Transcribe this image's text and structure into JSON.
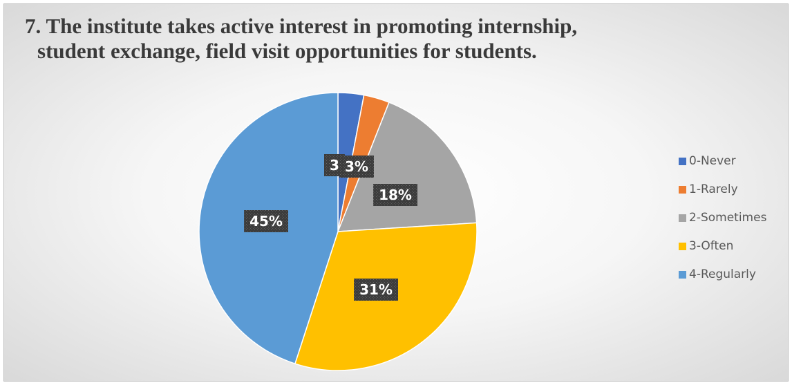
{
  "chart_data": {
    "type": "pie",
    "title_line1": "7. The institute takes active interest in promoting internship,",
    "title_line2": "student exchange, field visit opportunities for students.",
    "start_angle_deg": 0,
    "direction": "clockwise",
    "legend_position": "right",
    "slices": [
      {
        "name": "0-Never",
        "value": 3,
        "label": "3",
        "color": "#4472c4"
      },
      {
        "name": "1-Rarely",
        "value": 3,
        "label": "3%",
        "color": "#ed7d31"
      },
      {
        "name": "2-Sometimes",
        "value": 18,
        "label": "18%",
        "color": "#a5a5a5"
      },
      {
        "name": "3-Often",
        "value": 31,
        "label": "31%",
        "color": "#ffc000"
      },
      {
        "name": "4-Regularly",
        "value": 45,
        "label": "45%",
        "color": "#5b9bd5"
      }
    ]
  }
}
